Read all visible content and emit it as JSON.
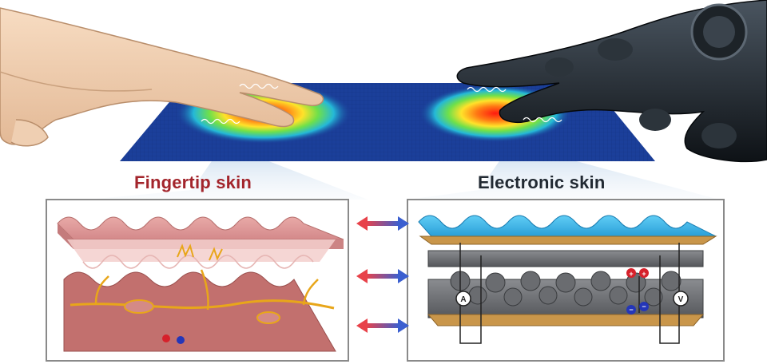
{
  "labels": {
    "fingertip": "Fingertip skin",
    "electronic": "Electronic skin"
  },
  "icons": {
    "ammeter": "A",
    "voltmeter": "V",
    "plus": "+",
    "minus": "−"
  },
  "colors": {
    "fingertip_label": "#a3252c",
    "electronic_label": "#222a33",
    "sheet": "#1b3f9a",
    "hotspot": "#e63a1e",
    "epidermis": "#d98f90",
    "electrode_top": "#3bb3e8",
    "electrode_gold": "#c9964a",
    "dielectric": "#6d6f73",
    "arrow_red": "#e8424a",
    "arrow_blue": "#3b5fd0"
  }
}
